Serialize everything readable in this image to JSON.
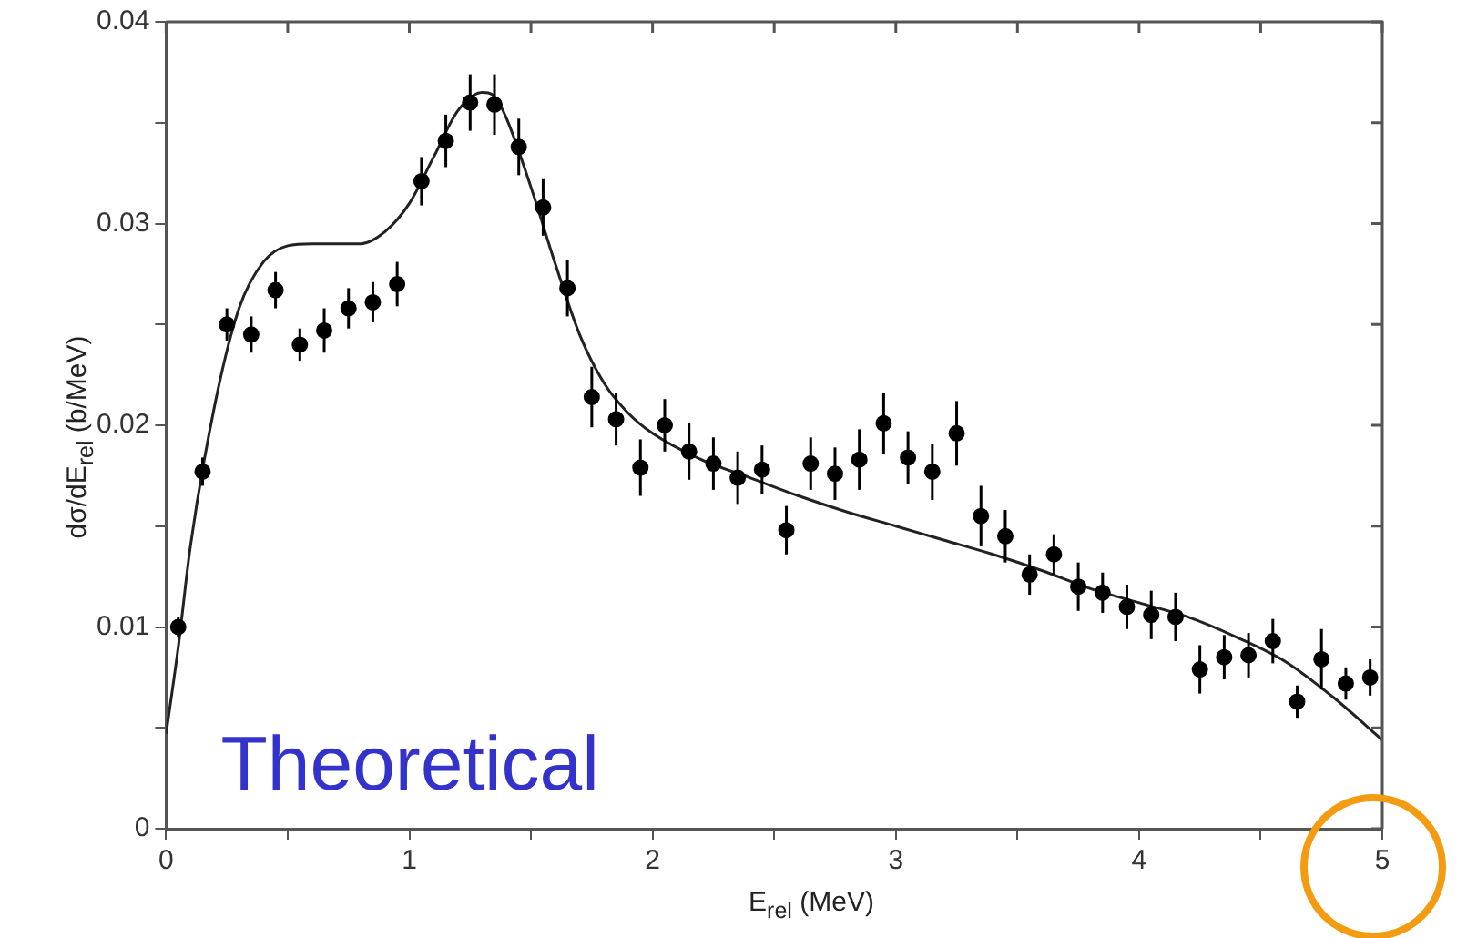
{
  "chart_data": {
    "type": "scatter",
    "xlabel": "E$_{rel}$ (MeV)",
    "ylabel": "dσ/dE$_{rel}$ (b/MeV)",
    "annotations": [
      "Theoretical"
    ],
    "xlim": [
      0,
      5
    ],
    "xticks": [
      0,
      {
        "value": 0.5,
        "label": null
      },
      1,
      {
        "value": 1.5,
        "label": null
      },
      2,
      {
        "value": 2.5,
        "label": null
      },
      3,
      {
        "value": 3.5,
        "label": null
      },
      4,
      {
        "value": 4.5,
        "label": null
      },
      5
    ],
    "ylim": [
      0,
      0.04
    ],
    "yticks": [
      0,
      {
        "value": 0.005,
        "label": null
      },
      0.01,
      {
        "value": 0.015,
        "label": null
      },
      0.02,
      {
        "value": 0.025,
        "label": null
      },
      0.03,
      {
        "value": 0.035,
        "label": null
      },
      0.04
    ],
    "legend": false,
    "series": [
      {
        "type": "scatter",
        "marker": "circle",
        "color": "#000000",
        "x": [
          0.05,
          0.15,
          0.25,
          0.35,
          0.45,
          0.55,
          0.65,
          0.75,
          0.85,
          0.95,
          1.05,
          1.15,
          1.25,
          1.35,
          1.45,
          1.55,
          1.65,
          1.75,
          1.85,
          1.95,
          2.05,
          2.15,
          2.25,
          2.35,
          2.45,
          2.55,
          2.65,
          2.75,
          2.85,
          2.95,
          3.05,
          3.15,
          3.25,
          3.35,
          3.45,
          3.55,
          3.65,
          3.75,
          3.85,
          3.95,
          4.05,
          4.15,
          4.25,
          4.35,
          4.45,
          4.55,
          4.65,
          4.75,
          4.85,
          4.95
        ],
        "values": [
          0.01,
          0.0177,
          0.025,
          0.0245,
          0.0267,
          0.024,
          0.0247,
          0.0258,
          0.0261,
          0.027,
          0.0321,
          0.0341,
          0.036,
          0.0359,
          0.0338,
          0.0308,
          0.0268,
          0.0214,
          0.0203,
          0.0179,
          0.02,
          0.0187,
          0.0181,
          0.0174,
          0.0178,
          0.0148,
          0.0181,
          0.0176,
          0.0183,
          0.0201,
          0.0184,
          0.0177,
          0.0196,
          0.0155,
          0.0145,
          0.0126,
          0.0136,
          0.012,
          0.0117,
          0.011,
          0.0106,
          0.0105,
          0.0079,
          0.0085,
          0.0086,
          0.0093,
          0.0063,
          0.0084,
          0.0072,
          0.0075
        ],
        "errors": [
          0.0005,
          0.0007,
          0.0008,
          0.0009,
          0.0009,
          0.0008,
          0.0011,
          0.001,
          0.001,
          0.0011,
          0.0012,
          0.0013,
          0.0014,
          0.0015,
          0.0014,
          0.0014,
          0.0014,
          0.0015,
          0.0013,
          0.0014,
          0.0013,
          0.0014,
          0.0013,
          0.0013,
          0.0012,
          0.0012,
          0.0013,
          0.0013,
          0.0015,
          0.0015,
          0.0013,
          0.0014,
          0.0016,
          0.0015,
          0.0013,
          0.001,
          0.001,
          0.0012,
          0.001,
          0.0011,
          0.0012,
          0.0012,
          0.0012,
          0.0011,
          0.0011,
          0.0011,
          0.0008,
          0.0015,
          0.0008,
          0.0009
        ]
      },
      {
        "type": "line",
        "marker": "none",
        "line_style": "solid",
        "color": "#222222",
        "x": [
          0,
          0.05,
          0.1,
          0.2,
          0.3,
          0.4,
          0.5,
          0.6,
          0.7,
          0.8,
          0.9,
          1.0,
          1.1,
          1.2,
          1.3,
          1.35,
          1.4,
          1.5,
          1.6,
          1.7,
          1.8,
          1.9,
          2.0,
          2.2,
          2.4,
          2.6,
          2.8,
          3.0,
          3.2,
          3.4,
          3.6,
          3.8,
          4.0,
          4.2,
          4.4,
          4.6,
          4.8,
          5.0
        ],
        "values": [
          0.0047,
          0.009,
          0.014,
          0.021,
          0.0258,
          0.0281,
          0.0289,
          0.029,
          0.029,
          0.029,
          0.0296,
          0.031,
          0.0333,
          0.0356,
          0.0365,
          0.0363,
          0.0352,
          0.0318,
          0.028,
          0.0245,
          0.0221,
          0.0206,
          0.0196,
          0.0183,
          0.0174,
          0.0165,
          0.0157,
          0.015,
          0.0143,
          0.0136,
          0.0128,
          0.0119,
          0.0112,
          0.0105,
          0.0095,
          0.0083,
          0.0065,
          0.0044
        ]
      }
    ]
  }
}
